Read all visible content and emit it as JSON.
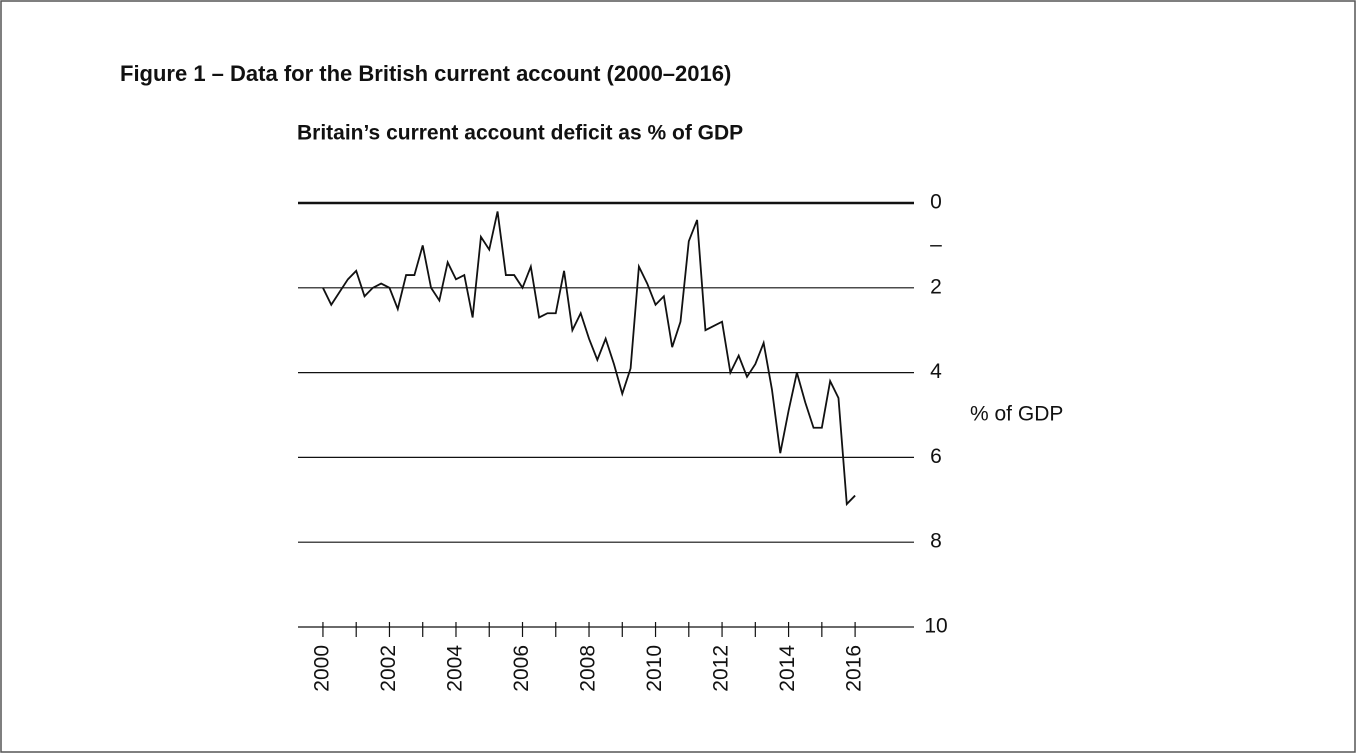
{
  "chart_data": {
    "type": "line",
    "title": "Figure 1 – Data for the British current account (2000–2016)",
    "subtitle": "Britain’s current account deficit as % of GDP",
    "y_label": "% of GDP",
    "x": [
      2000,
      2000.25,
      2000.5,
      2000.75,
      2001,
      2001.25,
      2001.5,
      2001.75,
      2002,
      2002.25,
      2002.5,
      2002.75,
      2003,
      2003.25,
      2003.5,
      2003.75,
      2004,
      2004.25,
      2004.5,
      2004.75,
      2005,
      2005.25,
      2005.5,
      2005.75,
      2006,
      2006.25,
      2006.5,
      2006.75,
      2007,
      2007.25,
      2007.5,
      2007.75,
      2008,
      2008.25,
      2008.5,
      2008.75,
      2009,
      2009.25,
      2009.5,
      2009.75,
      2010,
      2010.25,
      2010.5,
      2010.75,
      2011,
      2011.25,
      2011.5,
      2011.75,
      2012,
      2012.25,
      2012.5,
      2012.75,
      2013,
      2013.25,
      2013.5,
      2013.75,
      2014,
      2014.25,
      2014.5,
      2014.75,
      2015,
      2015.25,
      2015.5,
      2015.75,
      2016
    ],
    "series": [
      {
        "name": "Current account deficit",
        "color": "#111111",
        "values": [
          2.0,
          2.4,
          2.1,
          1.8,
          1.6,
          2.2,
          2.0,
          1.9,
          2.0,
          2.5,
          1.7,
          1.7,
          1.0,
          2.0,
          2.3,
          1.4,
          1.8,
          1.7,
          2.7,
          0.8,
          1.1,
          0.2,
          1.7,
          1.7,
          2.0,
          1.5,
          2.7,
          2.6,
          2.6,
          1.6,
          3.0,
          2.6,
          3.2,
          3.7,
          3.2,
          3.8,
          4.5,
          3.9,
          1.5,
          1.9,
          2.4,
          2.2,
          3.4,
          2.8,
          0.9,
          0.4,
          3.0,
          2.9,
          2.8,
          4.0,
          3.6,
          4.1,
          3.8,
          3.3,
          4.4,
          5.9,
          4.9,
          4.0,
          4.7,
          5.3,
          5.3,
          4.2,
          4.6,
          7.1,
          6.9
        ]
      }
    ],
    "xlim": [
      1999.25,
      2017.35
    ],
    "xticks": [
      2000,
      2002,
      2004,
      2006,
      2008,
      2010,
      2012,
      2014,
      2016
    ],
    "xminorticks": [
      2001,
      2003,
      2005,
      2007,
      2009,
      2011,
      2013,
      2015
    ],
    "ylim": [
      0,
      10
    ],
    "yticks": [
      0,
      {
        "value": 1,
        "label": "–"
      },
      2,
      4,
      6,
      8,
      10
    ],
    "y_inverted": true,
    "y_axis_side": "right",
    "grid": true
  }
}
